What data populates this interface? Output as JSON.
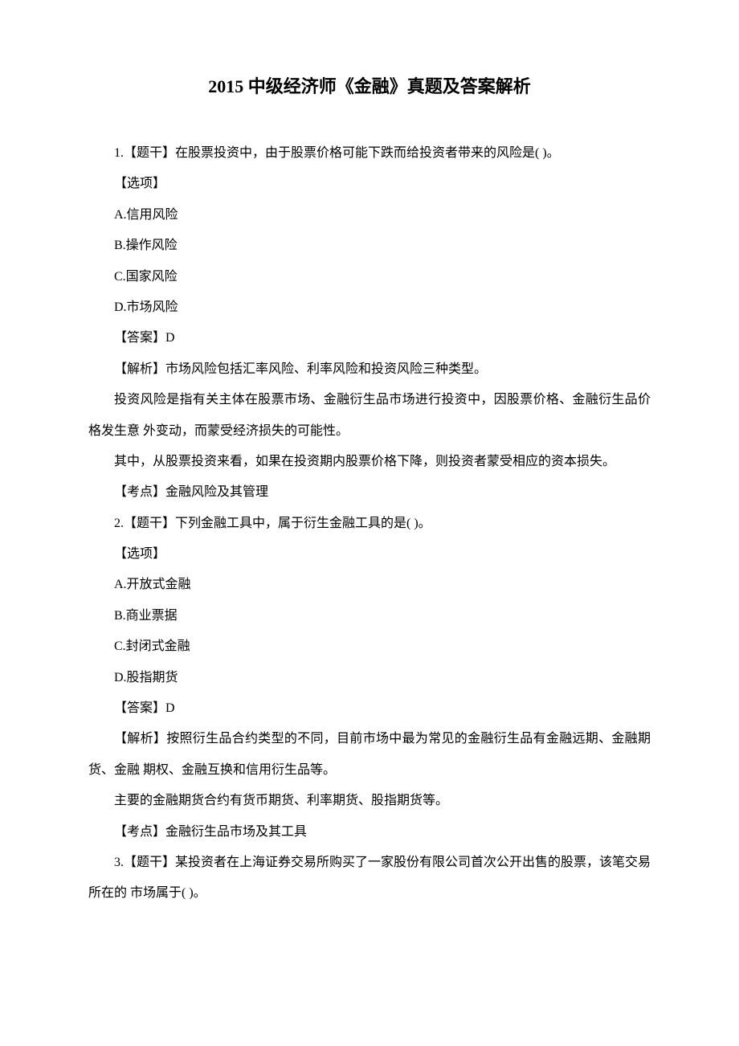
{
  "document": {
    "title": "2015 中级经济师《金融》真题及答案解析",
    "q1": {
      "stem": "1.【题干】在股票投资中，由于股票价格可能下跌而给投资者带来的风险是( )。",
      "options_label": "【选项】",
      "optA": "A.信用风险",
      "optB": "B.操作风险",
      "optC": "C.国家风险",
      "optD": "D.市场风险",
      "answer": "【答案】D",
      "explain1": "【解析】市场风险包括汇率风险、利率风险和投资风险三种类型。",
      "explain2": "投资风险是指有关主体在股票市场、金融衍生品市场进行投资中，因股票价格、金融衍生品价格发生意 外变动，而蒙受经济损失的可能性。",
      "explain3": "其中，从股票投资来看，如果在投资期内股票价格下降，则投资者蒙受相应的资本损失。",
      "point": "【考点】金融风险及其管理"
    },
    "q2": {
      "stem": "2.【题干】下列金融工具中，属于衍生金融工具的是( )。",
      "options_label": "【选项】",
      "optA": "A.开放式金融",
      "optB": "B.商业票据",
      "optC": "C.封闭式金融",
      "optD": "D.股指期货",
      "answer": "【答案】D",
      "explain1": "【解析】按照衍生品合约类型的不同，目前市场中最为常见的金融衍生品有金融远期、金融期货、金融 期权、金融互换和信用衍生品等。",
      "explain2": "主要的金融期货合约有货币期货、利率期货、股指期货等。",
      "point": "【考点】金融衍生品市场及其工具"
    },
    "q3": {
      "stem": "3.【题干】某投资者在上海证券交易所购买了一家股份有限公司首次公开出售的股票，该笔交易所在的 市场属于( )。"
    }
  }
}
